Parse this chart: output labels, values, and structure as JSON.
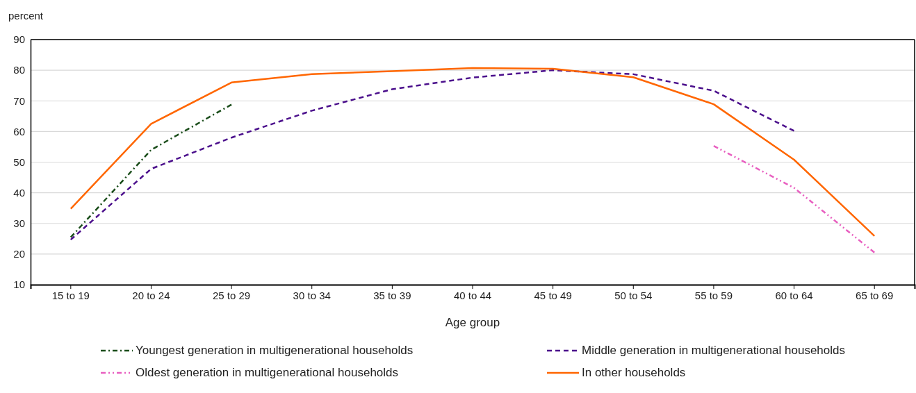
{
  "chart_data": {
    "type": "line",
    "ylabel": "percent",
    "xlabel": "Age group",
    "categories": [
      "15 to 19",
      "20 to 24",
      "25 to 29",
      "30 to 34",
      "35 to 39",
      "40 to 44",
      "45 to 49",
      "50 to 54",
      "55 to 59",
      "60 to 64",
      "65 to 69"
    ],
    "series": [
      {
        "name": "Youngest generation in multigenerational households",
        "color": "#1a4d1a",
        "line_style": "dashdot",
        "values": [
          25.5,
          54,
          68.8,
          null,
          null,
          null,
          null,
          null,
          null,
          null,
          null
        ]
      },
      {
        "name": "Middle generation in multigenerational households",
        "color": "#4b0f8c",
        "line_style": "dashed",
        "values": [
          24.7,
          47.8,
          58,
          66.8,
          73.8,
          77.6,
          80,
          78.7,
          73.3,
          60.2,
          null
        ]
      },
      {
        "name": "Oldest generation in multigenerational households",
        "color": "#e85fc0",
        "line_style": "dashdotdot",
        "values": [
          null,
          null,
          null,
          null,
          null,
          null,
          null,
          null,
          55.3,
          41.6,
          20.5
        ]
      },
      {
        "name": "In other households",
        "color": "#ff6600",
        "line_style": "solid",
        "values": [
          34.8,
          62.5,
          76,
          78.7,
          79.7,
          80.7,
          80.5,
          77.7,
          68.9,
          50.8,
          25.9
        ]
      }
    ],
    "ylim": [
      10,
      90
    ],
    "yticks": [
      10,
      20,
      30,
      40,
      50,
      60,
      70,
      80,
      90
    ],
    "grid": "y",
    "legend": "bottom"
  }
}
